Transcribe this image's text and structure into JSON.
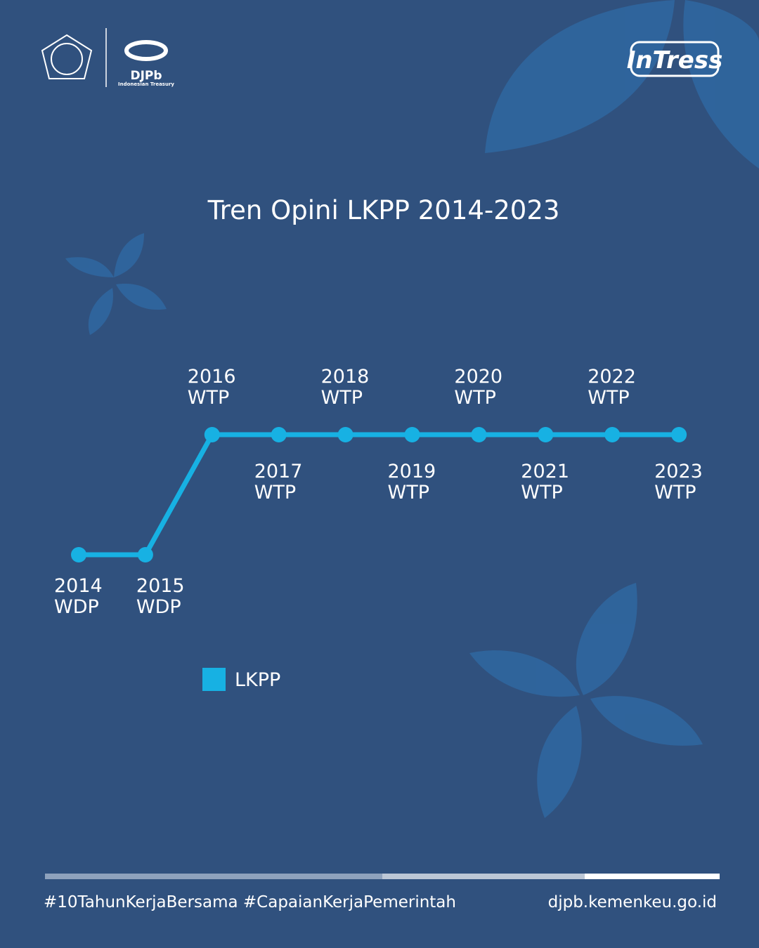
{
  "header": {
    "brand": "DJPb",
    "brand_sub": "Indonesian Treasury",
    "logo_right": "InTress"
  },
  "chart_data": {
    "type": "line",
    "title": "Tren Opini LKPP 2014-2023",
    "categories": [
      "2014",
      "2015",
      "2016",
      "2017",
      "2018",
      "2019",
      "2020",
      "2021",
      "2022",
      "2023"
    ],
    "ylevels": [
      "WDP",
      "WTP"
    ],
    "series": [
      {
        "name": "LKPP",
        "color": "#17b1e3",
        "values": [
          "WDP",
          "WDP",
          "WTP",
          "WTP",
          "WTP",
          "WTP",
          "WTP",
          "WTP",
          "WTP",
          "WTP"
        ]
      }
    ],
    "legend": "bottom-left"
  },
  "footer": {
    "hashtags": "#10TahunKerjaBersama #CapaianKerjaPemerintah",
    "url": "djpb.kemenkeu.go.id"
  }
}
